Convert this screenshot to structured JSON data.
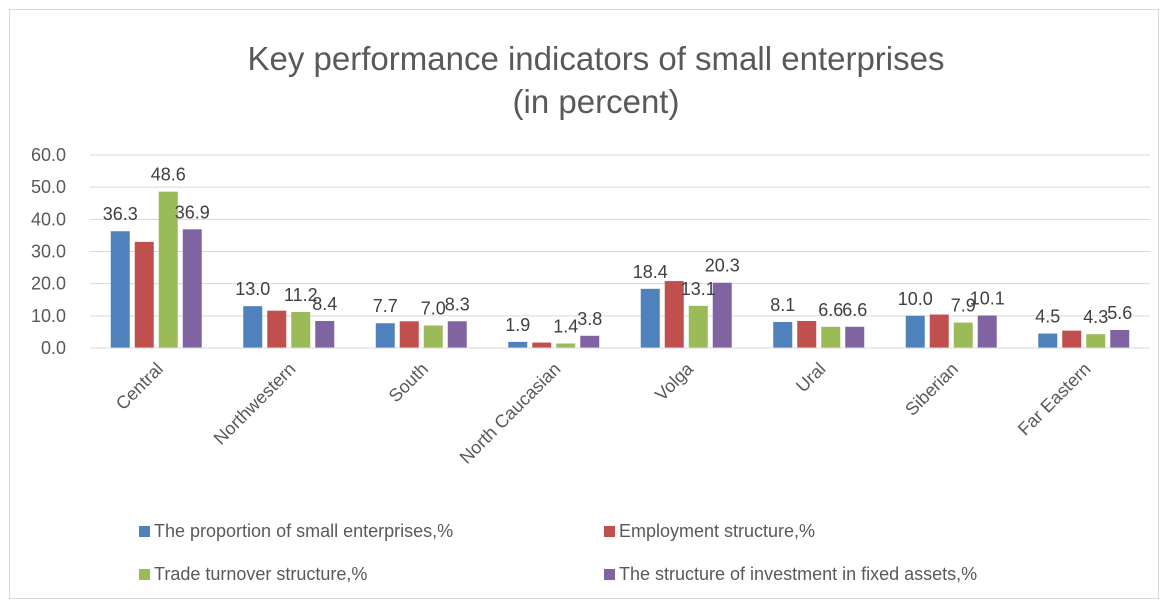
{
  "chart_data": {
    "type": "bar",
    "title": "Key performance indicators of small enterprises",
    "subtitle": "(in percent)",
    "xlabel": "",
    "ylabel": "",
    "ylim": [
      0,
      60
    ],
    "yticks": [
      "0.0",
      "10.0",
      "20.0",
      "30.0",
      "40.0",
      "50.0",
      "60.0"
    ],
    "grid": true,
    "legend_position": "bottom",
    "categories": [
      "Central",
      "Northwestern",
      "South",
      "North Caucasian",
      "Volga",
      "Ural",
      "Siberian",
      "Far Eastern"
    ],
    "series": [
      {
        "name": "The proportion of small enterprises,%",
        "color": "#4F81BD",
        "values": [
          36.3,
          13.0,
          7.7,
          1.9,
          18.4,
          8.1,
          10.0,
          4.5
        ],
        "labels": [
          "36.3",
          "13.0",
          "7.7",
          "1.9",
          "18.4",
          "8.1",
          "10.0",
          "4.5"
        ]
      },
      {
        "name": "Employment structure,%",
        "color": "#C0504D",
        "values": [
          33.0,
          11.6,
          8.3,
          1.7,
          20.8,
          8.4,
          10.4,
          5.4
        ]
      },
      {
        "name": "Trade turnover structure,%",
        "color": "#9BBB59",
        "values": [
          48.6,
          11.2,
          7.0,
          1.4,
          13.1,
          6.6,
          7.9,
          4.3
        ],
        "labels": [
          "48.6",
          "11.2",
          "7.0",
          "1.4",
          "13.1",
          "6.6",
          "7.9",
          "4.3"
        ]
      },
      {
        "name": "The structure of investment in fixed assets,%",
        "color": "#8064A2",
        "values": [
          36.9,
          8.4,
          8.3,
          3.8,
          20.3,
          6.6,
          10.1,
          5.6
        ],
        "labels": [
          "36.9",
          "8.4",
          "8.3",
          "3.8",
          "20.3",
          "6.6",
          "10.1",
          "5.6"
        ]
      }
    ]
  }
}
